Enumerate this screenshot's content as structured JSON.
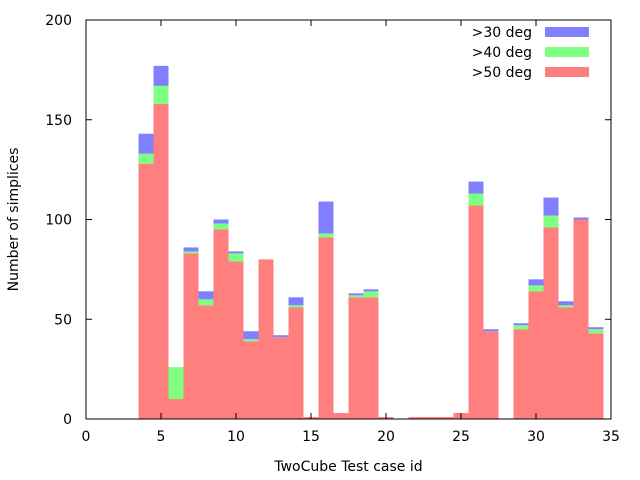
{
  "chart_data": {
    "type": "bar",
    "stacked": true,
    "xlabel": "TwoCube Test case id",
    "ylabel": "Number of simplices",
    "xlim": [
      0,
      35
    ],
    "ylim": [
      0,
      200
    ],
    "xticks": [
      0,
      5,
      10,
      15,
      20,
      25,
      30,
      35
    ],
    "yticks": [
      0,
      50,
      100,
      150,
      200
    ],
    "grid": false,
    "legend_position": "top-right",
    "x": [
      4,
      5,
      6,
      7,
      8,
      9,
      10,
      11,
      12,
      13,
      14,
      15,
      16,
      17,
      18,
      19,
      20,
      21,
      22,
      23,
      24,
      25,
      26,
      27,
      28,
      29,
      30,
      31,
      32,
      33,
      34
    ],
    "series": [
      {
        "name": ">50 deg",
        "color": "#ff7f7f",
        "values": [
          128,
          158,
          10,
          83,
          57,
          95,
          79,
          39,
          80,
          41,
          56,
          1,
          91,
          3,
          61,
          61,
          1,
          0,
          1,
          1,
          1,
          3,
          107,
          44,
          0,
          45,
          64,
          96,
          56,
          100,
          43
        ]
      },
      {
        "name": ">40 deg",
        "color": "#7fff7f",
        "values": [
          5,
          9,
          16,
          1,
          3,
          3,
          4,
          1,
          0,
          0,
          1,
          0,
          2,
          0,
          1,
          3,
          0,
          0,
          0,
          0,
          0,
          0,
          6,
          0,
          0,
          2,
          3,
          6,
          1,
          0,
          2
        ]
      },
      {
        "name": ">30 deg",
        "color": "#7f7fff",
        "values": [
          10,
          10,
          0,
          2,
          4,
          2,
          1,
          4,
          0,
          1,
          4,
          0,
          16,
          0,
          1,
          1,
          0,
          0,
          0,
          0,
          0,
          0,
          6,
          1,
          0,
          1,
          3,
          9,
          2,
          1,
          1
        ]
      }
    ]
  }
}
